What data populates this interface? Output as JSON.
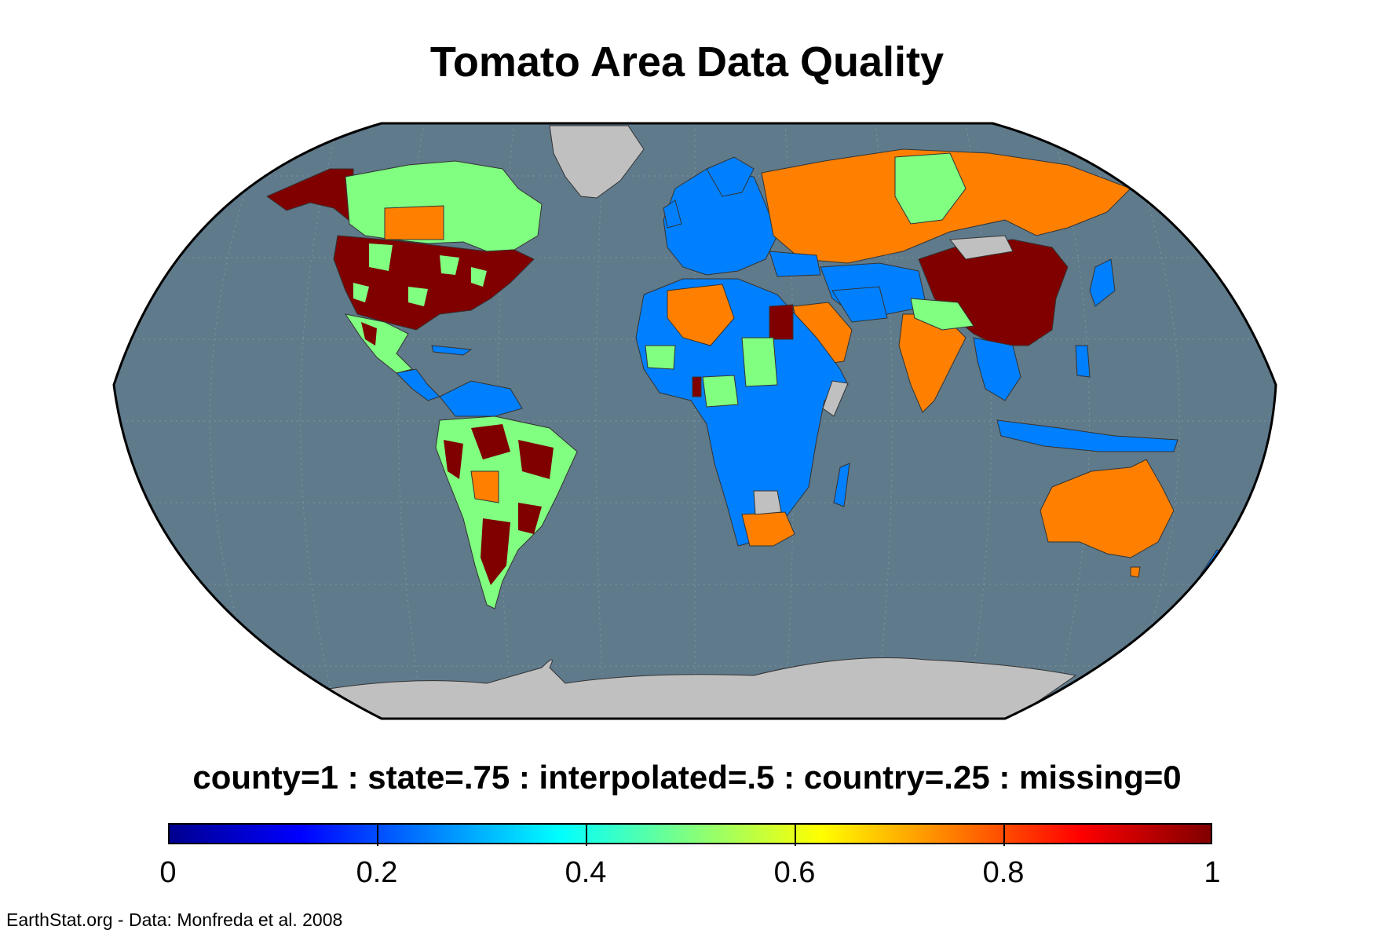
{
  "title": "Tomato Area Data Quality",
  "legend_caption": "county=1 : state=.75 : interpolated=.5 : country=.25 : missing=0",
  "colorbar": {
    "ticks": [
      "0",
      "0.2",
      "0.4",
      "0.6",
      "0.8",
      "1"
    ],
    "range": [
      0,
      1
    ],
    "colormap": "jet",
    "stops": [
      "#00008f",
      "#0000ff",
      "#0080ff",
      "#00ffff",
      "#80ff80",
      "#ffff00",
      "#ff8000",
      "#ff0000",
      "#800000"
    ]
  },
  "credit": "EarthStat.org - Data: Monfreda et al. 2008",
  "map": {
    "projection": "Robinson",
    "ocean_color": "#5f7a8b",
    "no_data_color": "#c0c0c0",
    "value_colors": {
      "county": "#800000",
      "state": "#ff8000",
      "interpolated": "#80ff80",
      "country": "#0080ff"
    }
  }
}
